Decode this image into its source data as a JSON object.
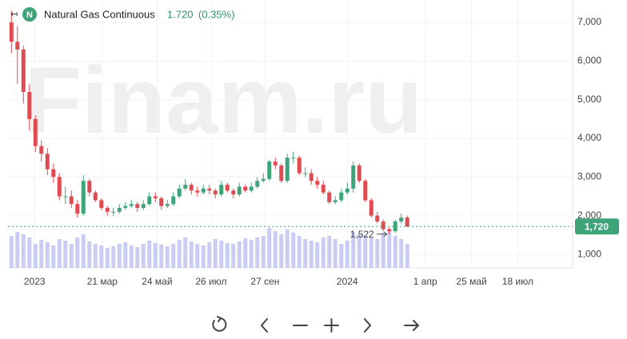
{
  "chart_data": {
    "type": "candlestick",
    "title": "Natural Gas Continuous",
    "price": "1.720",
    "change": "(0.35%)",
    "icon_letter": "N",
    "watermark": "Finam.ru",
    "up_color": "#3fa37a",
    "down_color": "#e04a51",
    "volume_color": "#c9cdf3",
    "x": [
      "2022-12-05",
      "2022-12-12",
      "2022-12-19",
      "2022-12-26",
      "2023-01-02",
      "2023-01-09",
      "2023-01-16",
      "2023-01-23",
      "2023-01-30",
      "2023-02-06",
      "2023-02-13",
      "2023-02-20",
      "2023-02-27",
      "2023-03-06",
      "2023-03-13",
      "2023-03-20",
      "2023-03-27",
      "2023-04-03",
      "2023-04-10",
      "2023-04-17",
      "2023-04-24",
      "2023-05-01",
      "2023-05-08",
      "2023-05-15",
      "2023-05-22",
      "2023-05-29",
      "2023-06-05",
      "2023-06-12",
      "2023-06-19",
      "2023-06-26",
      "2023-07-03",
      "2023-07-10",
      "2023-07-17",
      "2023-07-24",
      "2023-07-31",
      "2023-08-07",
      "2023-08-14",
      "2023-08-21",
      "2023-08-28",
      "2023-09-04",
      "2023-09-11",
      "2023-09-18",
      "2023-09-25",
      "2023-10-02",
      "2023-10-09",
      "2023-10-16",
      "2023-10-23",
      "2023-10-30",
      "2023-11-06",
      "2023-11-13",
      "2023-11-20",
      "2023-11-27",
      "2023-12-04",
      "2023-12-11",
      "2023-12-18",
      "2023-12-25",
      "2024-01-01",
      "2024-01-08",
      "2024-01-15",
      "2024-01-22",
      "2024-01-29",
      "2024-02-05",
      "2024-02-12",
      "2024-02-19",
      "2024-02-26",
      "2024-03-04",
      "2024-03-11"
    ],
    "open": [
      7000,
      6500,
      6300,
      5200,
      4500,
      3800,
      3600,
      3200,
      3000,
      2500,
      2500,
      2300,
      2050,
      2900,
      2600,
      2400,
      2200,
      2100,
      2100,
      2200,
      2250,
      2300,
      2200,
      2300,
      2500,
      2450,
      2250,
      2300,
      2500,
      2700,
      2800,
      2650,
      2600,
      2700,
      2650,
      2550,
      2800,
      2650,
      2550,
      2750,
      2650,
      2750,
      2900,
      2950,
      3400,
      3300,
      2900,
      3500,
      3500,
      3100,
      3100,
      2900,
      2800,
      2600,
      2350,
      2400,
      2600,
      2700,
      3300,
      2900,
      2400,
      2000,
      1850,
      1650,
      1600,
      1850,
      1950
    ],
    "high": [
      7300,
      6900,
      6400,
      5400,
      4600,
      3950,
      3750,
      3350,
      3100,
      2750,
      2650,
      2400,
      3050,
      2950,
      2650,
      2450,
      2250,
      2200,
      2300,
      2350,
      2400,
      2350,
      2400,
      2600,
      2600,
      2500,
      2400,
      2600,
      2800,
      2950,
      2850,
      2750,
      2800,
      2800,
      2700,
      2900,
      2850,
      2700,
      2850,
      2800,
      2850,
      3000,
      3100,
      3450,
      3500,
      3350,
      3600,
      3650,
      3550,
      3250,
      3200,
      3000,
      2900,
      2650,
      2500,
      2700,
      2850,
      3400,
      3350,
      2950,
      2450,
      2100,
      1900,
      1700,
      1900,
      2050,
      2000
    ],
    "low": [
      6200,
      5400,
      4900,
      4200,
      3650,
      3400,
      3050,
      2850,
      2400,
      2300,
      2200,
      1950,
      2000,
      2500,
      2350,
      2150,
      2000,
      2000,
      2050,
      2150,
      2200,
      2100,
      2150,
      2250,
      2350,
      2150,
      2200,
      2250,
      2450,
      2650,
      2550,
      2500,
      2550,
      2550,
      2450,
      2500,
      2600,
      2450,
      2500,
      2600,
      2600,
      2700,
      2850,
      2900,
      3200,
      2850,
      2850,
      3350,
      3050,
      3000,
      2800,
      2700,
      2550,
      2300,
      2300,
      2350,
      2550,
      2600,
      2850,
      2350,
      1950,
      1800,
      1600,
      1522,
      1550,
      1800,
      1700
    ],
    "close": [
      6500,
      6300,
      5200,
      4500,
      3800,
      3600,
      3200,
      3000,
      2500,
      2500,
      2300,
      2050,
      2900,
      2600,
      2400,
      2200,
      2100,
      2100,
      2200,
      2250,
      2300,
      2200,
      2300,
      2500,
      2450,
      2250,
      2300,
      2500,
      2700,
      2800,
      2650,
      2600,
      2700,
      2650,
      2550,
      2800,
      2650,
      2550,
      2750,
      2650,
      2750,
      2900,
      2950,
      3400,
      3300,
      2900,
      3500,
      3500,
      3100,
      3100,
      2900,
      2800,
      2600,
      2350,
      2400,
      2600,
      2700,
      3300,
      2900,
      2400,
      2000,
      1850,
      1650,
      1600,
      1850,
      1950,
      1720
    ],
    "volume": [
      40,
      45,
      42,
      38,
      30,
      35,
      32,
      28,
      36,
      34,
      30,
      38,
      42,
      33,
      30,
      28,
      25,
      27,
      30,
      32,
      28,
      26,
      30,
      34,
      31,
      29,
      27,
      30,
      35,
      38,
      33,
      30,
      28,
      32,
      36,
      34,
      31,
      30,
      33,
      37,
      35,
      38,
      40,
      50,
      46,
      42,
      48,
      44,
      40,
      36,
      34,
      32,
      38,
      40,
      36,
      30,
      34,
      45,
      42,
      40,
      38,
      36,
      44,
      48,
      40,
      36,
      30
    ],
    "xlim": [
      "2022-12-01",
      "2024-09-20"
    ],
    "xticks": [
      {
        "value": "2023-01-01",
        "label": "2023"
      },
      {
        "value": "2023-03-21",
        "label": "21 мар"
      },
      {
        "value": "2023-05-24",
        "label": "24 май"
      },
      {
        "value": "2023-07-26",
        "label": "26 июл"
      },
      {
        "value": "2023-09-27",
        "label": "27 сен"
      },
      {
        "value": "2024-01-01",
        "label": "2024"
      },
      {
        "value": "2024-04-01",
        "label": "1 апр"
      },
      {
        "value": "2024-05-25",
        "label": "25 май"
      },
      {
        "value": "2024-07-18",
        "label": "18 июл"
      }
    ],
    "ylim": [
      650,
      7580
    ],
    "yticks": [
      {
        "value": 1000,
        "label": "1,000"
      },
      {
        "value": 2000,
        "label": "2,000"
      },
      {
        "value": 3000,
        "label": "3,000"
      },
      {
        "value": 4000,
        "label": "4,000"
      },
      {
        "value": 5000,
        "label": "5,000"
      },
      {
        "value": 6000,
        "label": "6,000"
      },
      {
        "value": 7000,
        "label": "7,000"
      }
    ],
    "last_price": {
      "value": 1720,
      "label": "1,720"
    },
    "min_annotation": {
      "value": 1522,
      "label": "1,522"
    }
  }
}
